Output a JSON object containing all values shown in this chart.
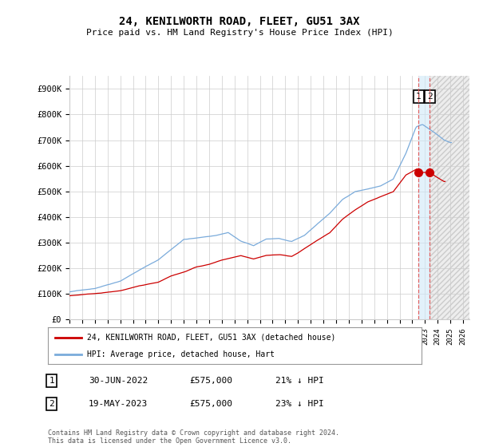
{
  "title": "24, KENILWORTH ROAD, FLEET, GU51 3AX",
  "subtitle": "Price paid vs. HM Land Registry's House Price Index (HPI)",
  "ylabel_ticks": [
    "£0",
    "£100K",
    "£200K",
    "£300K",
    "£400K",
    "£500K",
    "£600K",
    "£700K",
    "£800K",
    "£900K"
  ],
  "ytick_values": [
    0,
    100000,
    200000,
    300000,
    400000,
    500000,
    600000,
    700000,
    800000,
    900000
  ],
  "ylim": [
    0,
    950000
  ],
  "xlim_start": 1995.0,
  "xlim_end": 2026.5,
  "hpi_color": "#7aabdb",
  "price_color": "#cc0000",
  "vline_color": "#e05050",
  "grid_color": "#cccccc",
  "bg_color": "#ffffff",
  "legend_label_price": "24, KENILWORTH ROAD, FLEET, GU51 3AX (detached house)",
  "legend_label_hpi": "HPI: Average price, detached house, Hart",
  "sale1_date": "30-JUN-2022",
  "sale1_price": "£575,000",
  "sale1_pct": "21% ↓ HPI",
  "sale2_date": "19-MAY-2023",
  "sale2_price": "£575,000",
  "sale2_pct": "23% ↓ HPI",
  "footer": "Contains HM Land Registry data © Crown copyright and database right 2024.\nThis data is licensed under the Open Government Licence v3.0.",
  "sale1_x": 2022.5,
  "sale2_x": 2023.37,
  "sale1_y": 575000,
  "sale2_y": 575000
}
